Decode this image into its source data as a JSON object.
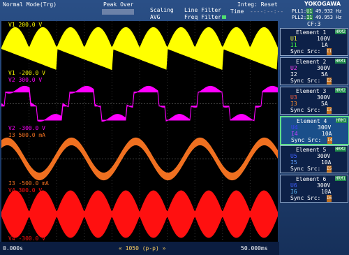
{
  "header": {
    "mode": "Normal Mode(Trg)",
    "peak": "Peak Over",
    "scaling": "Scaling",
    "avg": "AVG",
    "line_filter": "Line Filter",
    "freq_filter": "Freq Filter",
    "integ": "Integ: Reset",
    "time_label": "Time",
    "time_value": "----:--:--",
    "pll1": "PLL1:",
    "pll1_src": "U1",
    "pll1_freq": "49.932 Hz",
    "pll2": "PLL2:",
    "pll2_src": "I1",
    "pll2_freq": "49.953 Hz",
    "brand": "YOKOGAWA",
    "cf": "CF:3"
  },
  "traces": [
    {
      "name": "V1",
      "top": "200.0 V",
      "bottom": "-200.0 V",
      "color": "#ffff00"
    },
    {
      "name": "V2",
      "top": "300.0 V",
      "bottom": "-300.0 V",
      "color": "#ff00ff"
    },
    {
      "name": "I3",
      "top": "500.0 mA",
      "bottom": "-500.0 mA",
      "color": "#f07020"
    },
    {
      "name": "V4",
      "top": "300.0 V",
      "bottom": "-300.0 V",
      "color": "#ff1010"
    }
  ],
  "footer": {
    "start": "0.000s",
    "mid": "« 1050 (p-p) »",
    "end": "50.000ms"
  },
  "elements": [
    {
      "title": "Element 1",
      "badge": "HRM2",
      "u": "U1",
      "u_range": "100V",
      "i": "I1",
      "i_range": "1A",
      "sync": "Sync Src:",
      "sync_src": "I1"
    },
    {
      "title": "Element 2",
      "badge": "HRM1",
      "u": "U2",
      "u_range": "300V",
      "i": "I2",
      "i_range": "5A",
      "sync": "Sync Src:",
      "sync_src": "I2"
    },
    {
      "title": "Element 3",
      "badge": "HRM2",
      "u": "U3",
      "u_range": "300V",
      "i": "I3",
      "i_range": "5A",
      "sync": "Sync Src:",
      "sync_src": "I3"
    },
    {
      "title": "Element 4",
      "badge": "HRM1",
      "u": "U4",
      "u_range": "300V",
      "i": "I4",
      "i_range": "10A",
      "sync": "Sync Src:",
      "sync_src": "I4"
    },
    {
      "title": "Element 5",
      "badge": "HRM2",
      "u": "U5",
      "u_range": "300V",
      "i": "I5",
      "i_range": "10A",
      "sync": "Sync Src:",
      "sync_src": "I5"
    },
    {
      "title": "Element 6",
      "badge": "HRM1",
      "u": "U6",
      "u_range": "300V",
      "i": "I6",
      "i_range": "10A",
      "sync": "Sync Src:",
      "sync_src": "I6"
    }
  ]
}
